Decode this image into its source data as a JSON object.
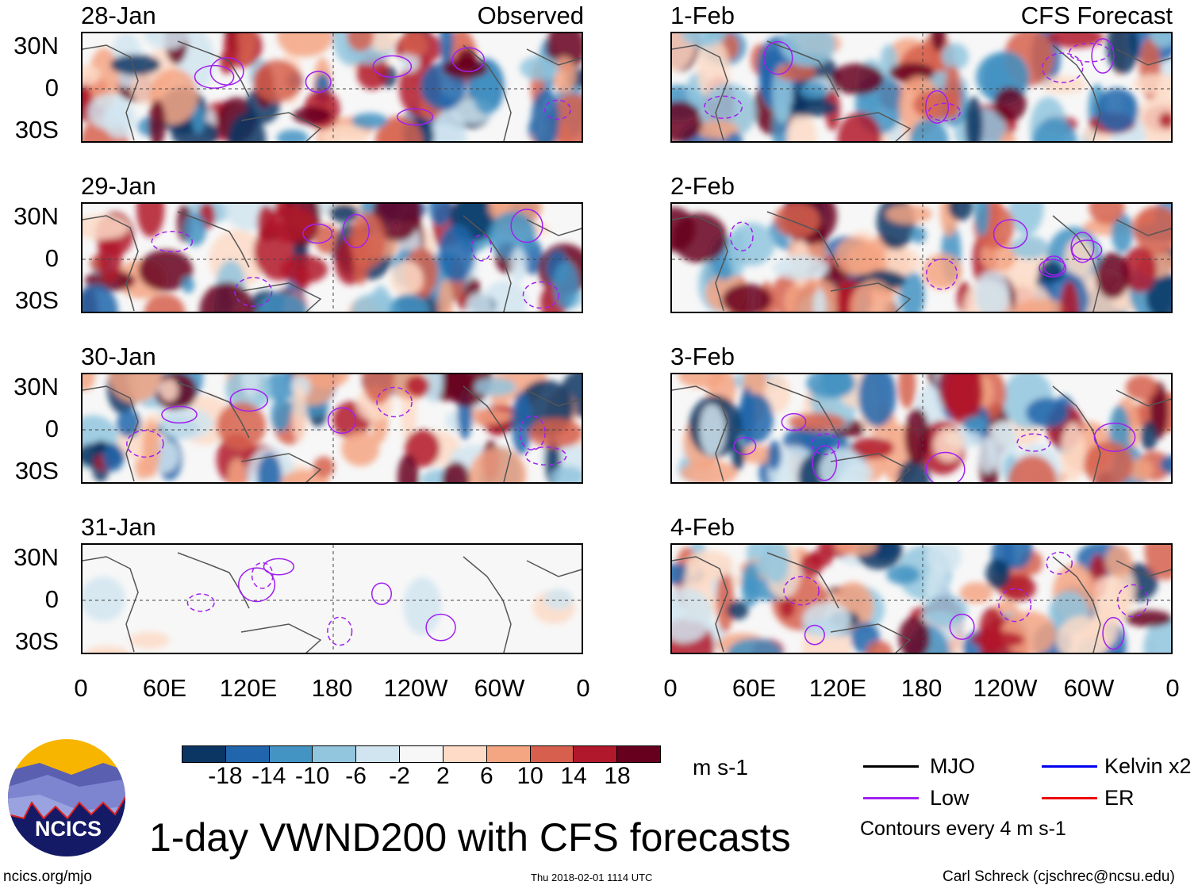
{
  "title": "1-day VWND200 with CFS forecasts",
  "left_heading": "Observed",
  "right_heading": "CFS Forecast",
  "lat_labels": [
    "30N",
    "0",
    "30S"
  ],
  "lon_labels": [
    "0",
    "60E",
    "120E",
    "180",
    "120W",
    "60W",
    "0"
  ],
  "panels_left": [
    {
      "date": "28-Jan",
      "muted": false
    },
    {
      "date": "29-Jan",
      "muted": false
    },
    {
      "date": "30-Jan",
      "muted": false
    },
    {
      "date": "31-Jan",
      "muted": true
    }
  ],
  "panels_right": [
    {
      "date": "1-Feb",
      "muted": false
    },
    {
      "date": "2-Feb",
      "muted": false
    },
    {
      "date": "3-Feb",
      "muted": false
    },
    {
      "date": "4-Feb",
      "muted": false
    }
  ],
  "colorbar": {
    "colors": [
      "#0b3563",
      "#2166ac",
      "#4393c3",
      "#92c5de",
      "#d1e5f0",
      "#f7f7f7",
      "#fddbc7",
      "#f4a582",
      "#d6604d",
      "#b2182b",
      "#67001f"
    ],
    "ticks": [
      "-18",
      "-14",
      "-10",
      "-6",
      "-2",
      "2",
      "6",
      "10",
      "14",
      "18"
    ],
    "unit": "m s-1"
  },
  "legend": {
    "items": [
      {
        "label": "MJO",
        "color": "#000000"
      },
      {
        "label": "Kelvin x2",
        "color": "#0000ee"
      },
      {
        "label": "Low",
        "color": "#a020f0"
      },
      {
        "label": "ER",
        "color": "#ee0000"
      }
    ],
    "note": "Contours every 4 m s-1"
  },
  "logo_text": "NCICS",
  "footer": {
    "url": "ncics.org/mjo",
    "timestamp": "Thu 2018-02-01 1114 UTC",
    "credit": "Carl Schreck (cjschrec@ncsu.edu)"
  }
}
